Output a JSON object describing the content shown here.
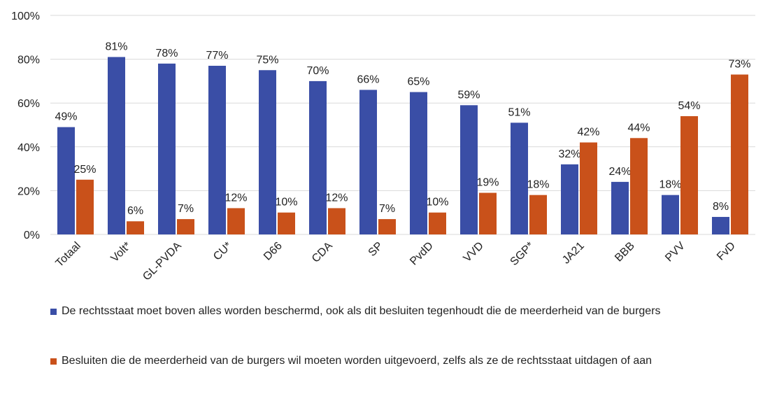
{
  "chart_data": {
    "type": "bar",
    "categories": [
      "Totaal",
      "Volt*",
      "GL-PVDA",
      "CU*",
      "D66",
      "CDA",
      "SP",
      "PvdD",
      "VVD",
      "SGP*",
      "JA21",
      "BBB",
      "PVV",
      "FvD"
    ],
    "series": [
      {
        "name": "De rechtsstaat moet boven alles worden beschermd, ook als dit besluiten tegenhoudt die de meerderheid van de burgers",
        "color": "#3a4ea6",
        "values": [
          49,
          81,
          78,
          77,
          75,
          70,
          66,
          65,
          59,
          51,
          32,
          24,
          18,
          8
        ]
      },
      {
        "name": "Besluiten die de meerderheid van de burgers wil moeten worden uitgevoerd, zelfs als ze de rechtsstaat uitdagen of aan",
        "color": "#c9511a",
        "values": [
          25,
          6,
          7,
          12,
          10,
          12,
          7,
          10,
          19,
          18,
          42,
          44,
          54,
          73
        ]
      }
    ],
    "data_labels": [
      [
        "49%",
        "81%",
        "78%",
        "77%",
        "75%",
        "70%",
        "66%",
        "65%",
        "59%",
        "51%",
        "32%",
        "24%",
        "18%",
        "8%"
      ],
      [
        "25%",
        "6%",
        "7%",
        "12%",
        "10%",
        "12%",
        "7%",
        "10%",
        "19%",
        "18%",
        "42%",
        "44%",
        "54%",
        "73%"
      ]
    ],
    "yticks": [
      "0%",
      "20%",
      "40%",
      "60%",
      "80%",
      "100%"
    ],
    "ylim": [
      0,
      100
    ],
    "grid": true,
    "legend_position": "bottom",
    "title": "",
    "xlabel": "",
    "ylabel": ""
  },
  "colors": {
    "grid": "#d9d9d9",
    "text": "#222222"
  }
}
